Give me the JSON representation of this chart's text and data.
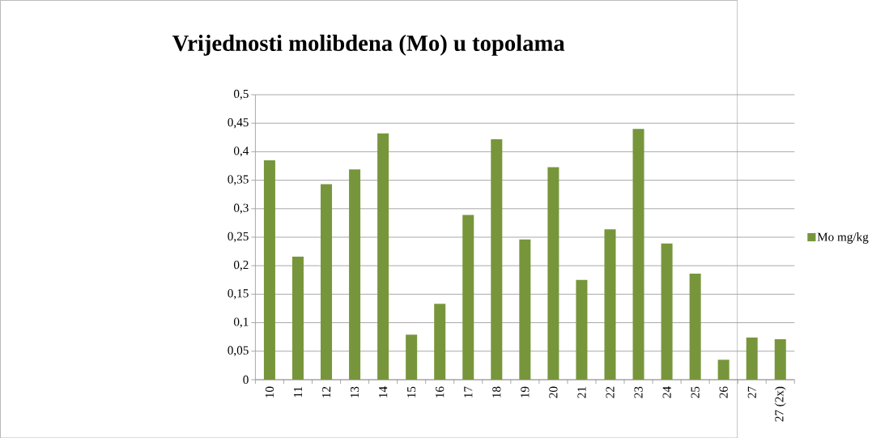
{
  "chart_data": {
    "type": "bar",
    "title": "Vrijednosti molibdena (Mo) u topolama",
    "categories": [
      "10",
      "11",
      "12",
      "13",
      "14",
      "15",
      "16",
      "17",
      "18",
      "19",
      "20",
      "21",
      "22",
      "23",
      "24",
      "25",
      "26",
      "27",
      "27 (2x)"
    ],
    "series": [
      {
        "name": "Mo mg/kg",
        "color": "#77963b",
        "values": [
          0.385,
          0.216,
          0.343,
          0.369,
          0.432,
          0.079,
          0.133,
          0.289,
          0.422,
          0.246,
          0.373,
          0.175,
          0.264,
          0.44,
          0.239,
          0.186,
          0.035,
          0.074,
          0.071
        ]
      }
    ],
    "ylim": [
      0,
      0.5
    ],
    "yticks": [
      0,
      {
        "value": 0.05,
        "label": "0,05"
      },
      {
        "value": 0.1,
        "label": "0,1"
      },
      {
        "value": 0.15,
        "label": "0,15"
      },
      {
        "value": 0.2,
        "label": "0,2"
      },
      {
        "value": 0.25,
        "label": "0,25"
      },
      {
        "value": 0.3,
        "label": "0,3"
      },
      {
        "value": 0.35,
        "label": "0,35"
      },
      {
        "value": 0.4,
        "label": "0,4"
      },
      {
        "value": 0.45,
        "label": "0,45"
      },
      {
        "value": 0.5,
        "label": "0,5"
      }
    ],
    "grid": "y",
    "legend": "right"
  }
}
